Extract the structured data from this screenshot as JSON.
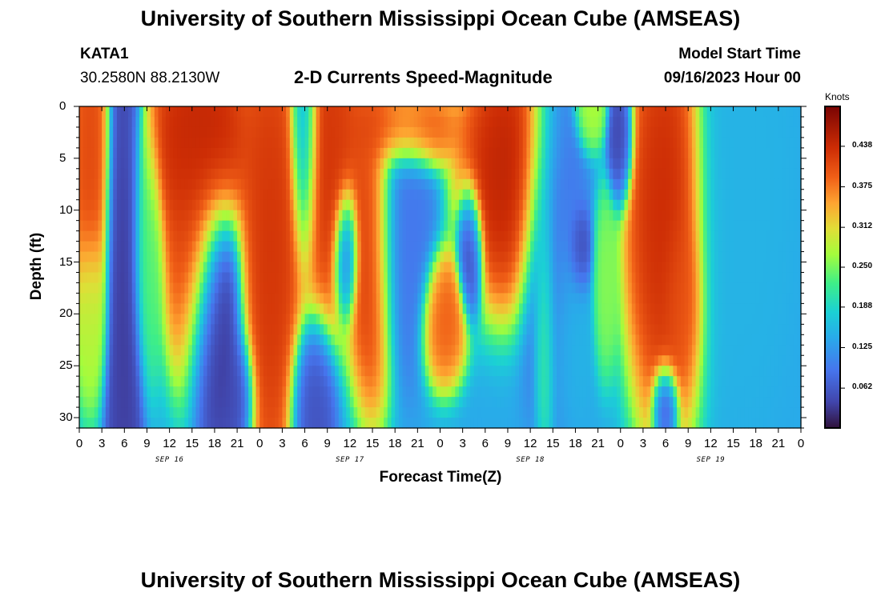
{
  "header": {
    "title_top": "University of Southern Mississippi Ocean Cube (AMSEAS)",
    "title_bottom": "University of Southern Mississippi Ocean Cube (AMSEAS)",
    "station_id": "KATA1",
    "station_coords": "30.2580N  88.2130W",
    "model_start_label": "Model Start Time",
    "model_start_value": "09/16/2023 Hour 00"
  },
  "chart_data": {
    "type": "heatmap",
    "title": "2-D Currents Speed-Magnitude",
    "xlabel": "Forecast Time(Z)",
    "ylabel": "Depth (ft)",
    "xlim_hours": [
      0,
      96
    ],
    "ylim_ft": [
      0,
      31
    ],
    "x_tick_labels": [
      "0",
      "3",
      "6",
      "9",
      "12",
      "15",
      "18",
      "21",
      "0",
      "3",
      "6",
      "9",
      "12",
      "15",
      "18",
      "21",
      "0",
      "3",
      "6",
      "9",
      "12",
      "15",
      "18",
      "21",
      "0",
      "3",
      "6",
      "9",
      "12",
      "15",
      "18",
      "21",
      "0"
    ],
    "date_labels": [
      "SEP 16",
      "SEP 17",
      "SEP 18",
      "SEP 19"
    ],
    "y_tick_labels": [
      "0",
      "5",
      "10",
      "15",
      "20",
      "25",
      "30"
    ],
    "y_tick_values": [
      0,
      5,
      10,
      15,
      20,
      25,
      30
    ],
    "colorbar": {
      "unit": "Knots",
      "range": [
        0,
        0.5
      ],
      "tick_labels": [
        "0.438",
        "0.375",
        "0.312",
        "0.250",
        "0.188",
        "0.125",
        "0.062"
      ],
      "tick_values": [
        0.438,
        0.375,
        0.312,
        0.25,
        0.188,
        0.125,
        0.062
      ]
    },
    "features": [
      {
        "t": 1.5,
        "d": 4,
        "v": 0.42,
        "st": 1.3,
        "sd": 9
      },
      {
        "t": 1.5,
        "d": 20,
        "v": 0.27,
        "st": 1.0,
        "sd": 4
      },
      {
        "t": 6,
        "d": 16,
        "v": 0.03,
        "st": 1.2,
        "sd": 18
      },
      {
        "t": 9,
        "d": 14,
        "v": 0.24,
        "st": 1.0,
        "sd": 6
      },
      {
        "t": 16,
        "d": 3,
        "v": 0.46,
        "st": 3.5,
        "sd": 5
      },
      {
        "t": 15,
        "d": 12,
        "v": 0.43,
        "st": 1.8,
        "sd": 7
      },
      {
        "t": 18,
        "d": 21,
        "v": 0.02,
        "st": 1.8,
        "sd": 6
      },
      {
        "t": 21,
        "d": 28,
        "v": 0.04,
        "st": 1.1,
        "sd": 3
      },
      {
        "t": 25.5,
        "d": 14,
        "v": 0.44,
        "st": 2.0,
        "sd": 12
      },
      {
        "t": 30,
        "d": 2,
        "v": 0.07,
        "st": 0.9,
        "sd": 6
      },
      {
        "t": 31,
        "d": 29,
        "v": 0.05,
        "st": 1.4,
        "sd": 4
      },
      {
        "t": 33,
        "d": 4,
        "v": 0.44,
        "st": 2.3,
        "sd": 8
      },
      {
        "t": 35.5,
        "d": 14,
        "v": 0.05,
        "st": 0.8,
        "sd": 3
      },
      {
        "t": 39,
        "d": 14,
        "v": 0.44,
        "st": 1.5,
        "sd": 7
      },
      {
        "t": 42,
        "d": 2,
        "v": 0.42,
        "st": 4.0,
        "sd": 2
      },
      {
        "t": 43,
        "d": 13,
        "v": 0.09,
        "st": 2.0,
        "sd": 6
      },
      {
        "t": 48.5,
        "d": 20.5,
        "v": 0.4,
        "st": 1.4,
        "sd": 3
      },
      {
        "t": 52,
        "d": 14,
        "v": 0.03,
        "st": 0.8,
        "sd": 3
      },
      {
        "t": 57,
        "d": 6,
        "v": 0.46,
        "st": 3.0,
        "sd": 6
      },
      {
        "t": 63,
        "d": 12,
        "v": 0.07,
        "st": 2.0,
        "sd": 8
      },
      {
        "t": 66.5,
        "d": 14,
        "v": 0.03,
        "st": 0.8,
        "sd": 2
      },
      {
        "t": 65,
        "d": 20,
        "v": 0.16,
        "st": 1.5,
        "sd": 5
      },
      {
        "t": 62,
        "d": 19,
        "v": 0.26,
        "st": 0.7,
        "sd": 6
      },
      {
        "t": 68,
        "d": 0,
        "v": 0.28,
        "st": 1.0,
        "sd": 2
      },
      {
        "t": 70,
        "d": 17,
        "v": 0.26,
        "st": 0.8,
        "sd": 4
      },
      {
        "t": 72,
        "d": 3,
        "v": 0.03,
        "st": 0.8,
        "sd": 3
      },
      {
        "t": 78,
        "d": 10,
        "v": 0.45,
        "st": 2.5,
        "sd": 10
      },
      {
        "t": 80,
        "d": 18,
        "v": 0.4,
        "st": 1.2,
        "sd": 4
      },
      {
        "t": 78,
        "d": 29,
        "v": 0.03,
        "st": 0.8,
        "sd": 2
      },
      {
        "t": 88,
        "d": 8,
        "v": 0.15,
        "st": 3.0,
        "sd": 10
      }
    ]
  }
}
